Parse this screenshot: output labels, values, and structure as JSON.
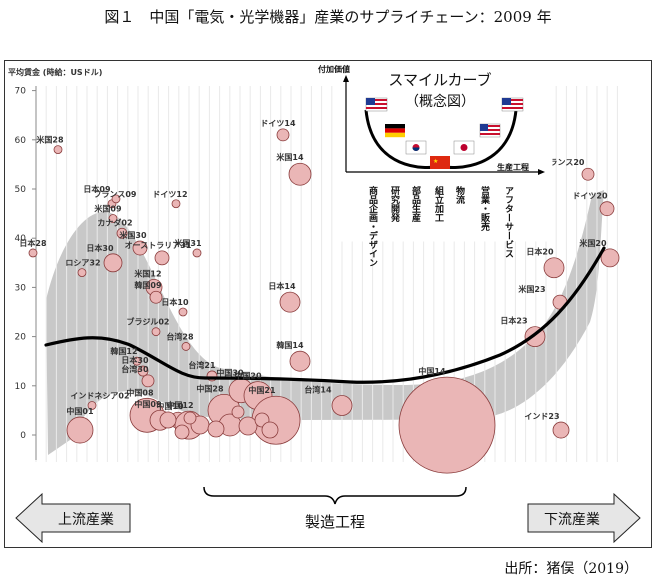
{
  "title": "図１　中国「電気・光学機器」産業のサプライチェーン：2009 年",
  "source": "出所：猪俣（2019）",
  "chart_data": {
    "type": "scatter",
    "ylabel": "平均賃金 (時給：USドル)",
    "yticks": [
      "0",
      "10",
      "20",
      "30",
      "40",
      "50",
      "60",
      "70"
    ],
    "ylim": [
      -5,
      70
    ],
    "grid": "vertical",
    "colors": {
      "bubble": "#eab6b6",
      "bubble_stroke": "#8a3c3c",
      "curve": "#000000",
      "band": "#c8c8c8"
    },
    "points": [
      {
        "label": "米国28",
        "y": 58,
        "size": 4
      },
      {
        "label": "日本28",
        "y": 37,
        "size": 4
      },
      {
        "label": "ロシア32",
        "y": 33,
        "size": 4
      },
      {
        "label": "インドネシア02",
        "y": 6,
        "size": 4
      },
      {
        "label": "中国01",
        "y": 1,
        "size": 13
      },
      {
        "label": "フランス09",
        "y": 47,
        "size": 4
      },
      {
        "label": "日本09",
        "y": 48,
        "size": 4
      },
      {
        "label": "米国09",
        "y": 44,
        "size": 4
      },
      {
        "label": "ドイツ12",
        "y": 47,
        "size": 4
      },
      {
        "label": "カナダ02",
        "y": 41,
        "size": 5
      },
      {
        "label": "米国30",
        "y": 38,
        "size": 7
      },
      {
        "label": "日本30",
        "y": 35,
        "size": 9
      },
      {
        "label": "オーストラリア31",
        "y": 36,
        "size": 7
      },
      {
        "label": "米国31",
        "y": 37,
        "size": 4
      },
      {
        "label": "米国12",
        "y": 30,
        "size": 8
      },
      {
        "label": "韓国09",
        "y": 28,
        "size": 6
      },
      {
        "label": "日本10",
        "y": 25,
        "size": 4
      },
      {
        "label": "ブラジル02",
        "y": 21,
        "size": 4
      },
      {
        "label": "台湾28",
        "y": 18,
        "size": 4
      },
      {
        "label": "韓国12",
        "y": 15,
        "size": 4
      },
      {
        "label": "日本30",
        "y": 13,
        "size": 5
      },
      {
        "label": "台湾30",
        "y": 11,
        "size": 6
      },
      {
        "label": "中国08",
        "y": 4,
        "size": 17
      },
      {
        "label": "中国09",
        "y": 3,
        "size": 10
      },
      {
        "label": "中国10",
        "y": 3,
        "size": 8
      },
      {
        "label": "中国12",
        "y": 2,
        "size": 14
      },
      {
        "label": "台湾21",
        "y": 12,
        "size": 5
      },
      {
        "label": "中国28",
        "y": 5,
        "size": 16
      },
      {
        "label": "中国30",
        "y": 9,
        "size": 12
      },
      {
        "label": "中国20",
        "y": 8,
        "size": 14
      },
      {
        "label": "中国21",
        "y": 3,
        "size": 24
      },
      {
        "label": "ドイツ14",
        "y": 61,
        "size": 6
      },
      {
        "label": "米国14",
        "y": 53,
        "size": 11
      },
      {
        "label": "日本14",
        "y": 27,
        "size": 10
      },
      {
        "label": "韓国14",
        "y": 15,
        "size": 10
      },
      {
        "label": "台湾14",
        "y": 6,
        "size": 10
      },
      {
        "label": "中国14",
        "y": 2,
        "size": 48
      },
      {
        "label": "フランス20",
        "y": 53,
        "size": 6
      },
      {
        "label": "ドイツ20",
        "y": 46,
        "size": 7
      },
      {
        "label": "米国20",
        "y": 36,
        "size": 9
      },
      {
        "label": "日本20",
        "y": 34,
        "size": 10
      },
      {
        "label": "米国23",
        "y": 27,
        "size": 7
      },
      {
        "label": "日本23",
        "y": 20,
        "size": 10
      },
      {
        "label": "インド23",
        "y": 1,
        "size": 8
      }
    ],
    "inset": {
      "title": "スマイルカーブ",
      "subtitle": "（概念図）",
      "yaxis": "付加価値",
      "xaxis": "生産工程",
      "stages": [
        "商品企画・デザイン",
        "研究開発",
        "部品生産",
        "組立加工",
        "物流",
        "営業・販売",
        "アフターサービス"
      ]
    },
    "arrows": {
      "left": "上流産業",
      "middle": "製造工程",
      "right": "下流産業"
    }
  }
}
